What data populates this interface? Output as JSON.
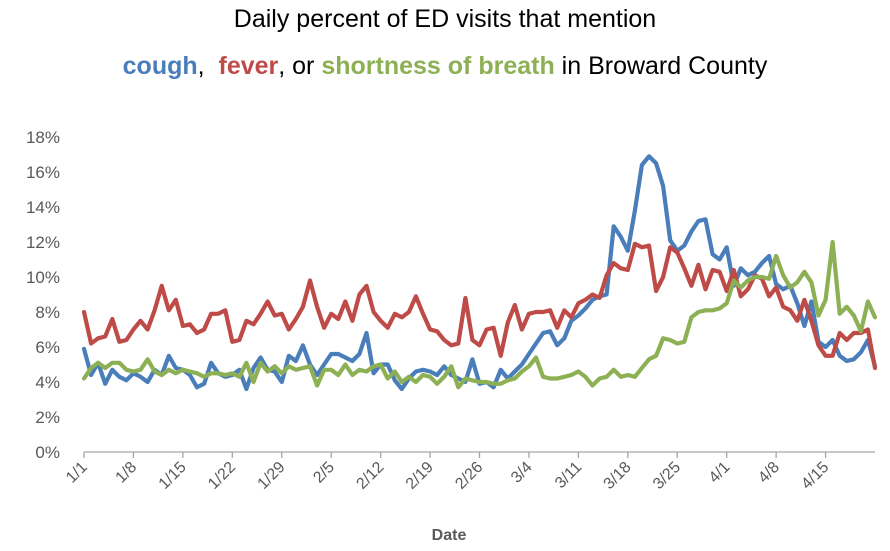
{
  "chart_data": {
    "type": "line",
    "title": {
      "line1": "Daily percent of ED visits that mention",
      "line2": {
        "cough": "cough",
        "sep1": ",  ",
        "fever": "fever",
        "sep2": ", or ",
        "sob": "shortness of breath",
        "suffix": " in Broward County"
      }
    },
    "xlabel": "Date",
    "ylabel": "",
    "ylim": [
      0,
      18
    ],
    "yticks": [
      "0%",
      "2%",
      "4%",
      "6%",
      "8%",
      "10%",
      "12%",
      "14%",
      "16%",
      "18%"
    ],
    "xtick_labels": [
      "1/1",
      "1/8",
      "1/15",
      "1/22",
      "1/29",
      "2/5",
      "2/12",
      "2/19",
      "2/26",
      "3/4",
      "3/11",
      "3/18",
      "3/25",
      "4/1",
      "4/8",
      "4/15"
    ],
    "grid": false,
    "legend": "in title",
    "series": [
      {
        "name": "cough",
        "color": "#4a7ebb",
        "values": [
          5.9,
          4.4,
          5.1,
          3.9,
          4.7,
          4.3,
          4.1,
          4.5,
          4.3,
          4.0,
          4.7,
          4.4,
          5.5,
          4.8,
          4.7,
          4.4,
          3.7,
          3.9,
          5.1,
          4.5,
          4.3,
          4.4,
          4.7,
          3.6,
          4.8,
          5.4,
          4.7,
          4.6,
          4.0,
          5.5,
          5.2,
          6.1,
          5.0,
          4.4,
          5.0,
          5.6,
          5.6,
          5.4,
          5.2,
          5.6,
          6.8,
          4.5,
          5.0,
          5.0,
          4.1,
          3.6,
          4.2,
          4.6,
          4.7,
          4.6,
          4.4,
          4.9,
          4.4,
          4.2,
          4.0,
          5.3,
          3.9,
          4.0,
          3.7,
          4.7,
          4.2,
          4.6,
          5.0,
          5.6,
          6.2,
          6.8,
          6.9,
          6.1,
          6.5,
          7.5,
          7.8,
          8.2,
          8.7,
          8.9,
          9.0,
          12.9,
          12.3,
          11.5,
          13.8,
          16.4,
          16.9,
          16.5,
          15.2,
          12.1,
          11.5,
          11.8,
          12.6,
          13.2,
          13.3,
          11.3,
          11.0,
          11.7,
          9.5,
          10.5,
          10.1,
          10.3,
          10.8,
          11.2,
          9.6,
          9.3,
          9.5,
          8.5,
          7.2,
          8.6,
          6.3,
          6.0,
          6.4,
          5.5,
          5.2,
          5.3,
          5.7,
          6.4,
          4.9
        ]
      },
      {
        "name": "fever",
        "color": "#be4b48",
        "values": [
          8.0,
          6.2,
          6.5,
          6.6,
          7.6,
          6.3,
          6.4,
          7.0,
          7.5,
          7.0,
          8.1,
          9.5,
          8.1,
          8.7,
          7.2,
          7.3,
          6.8,
          7.0,
          7.9,
          7.9,
          8.1,
          6.3,
          6.4,
          7.5,
          7.3,
          7.9,
          8.6,
          7.8,
          7.9,
          7.0,
          7.6,
          8.3,
          9.8,
          8.3,
          7.1,
          7.9,
          7.6,
          8.6,
          7.5,
          9.0,
          9.5,
          8.0,
          7.5,
          7.1,
          7.9,
          7.7,
          8.0,
          8.9,
          7.9,
          7.0,
          6.9,
          6.4,
          6.1,
          6.2,
          8.8,
          6.4,
          6.1,
          7.0,
          7.1,
          5.5,
          7.4,
          8.4,
          7.0,
          7.9,
          8.0,
          8.0,
          8.1,
          7.1,
          8.1,
          7.7,
          8.5,
          8.7,
          9.0,
          8.8,
          10.1,
          10.8,
          10.5,
          10.4,
          11.9,
          11.7,
          11.8,
          9.2,
          10.0,
          11.7,
          11.4,
          10.5,
          9.5,
          10.7,
          9.3,
          10.4,
          10.3,
          9.2,
          10.4,
          8.9,
          9.3,
          10.1,
          9.9,
          8.9,
          9.4,
          8.3,
          8.1,
          7.5,
          8.7,
          7.5,
          6.1,
          5.5,
          5.5,
          6.8,
          6.4,
          6.8,
          6.8,
          7.0,
          4.8
        ]
      },
      {
        "name": "shortness of breath",
        "color": "#8db055",
        "values": [
          4.2,
          4.8,
          5.1,
          4.8,
          5.1,
          5.1,
          4.7,
          4.6,
          4.7,
          5.3,
          4.6,
          4.4,
          4.7,
          4.5,
          4.7,
          4.6,
          4.5,
          4.3,
          4.5,
          4.5,
          4.4,
          4.5,
          4.3,
          5.1,
          4.0,
          5.1,
          4.6,
          4.9,
          4.5,
          4.9,
          4.7,
          4.8,
          4.9,
          3.8,
          4.7,
          4.7,
          4.4,
          5.0,
          4.4,
          4.7,
          4.6,
          4.9,
          5.0,
          4.2,
          4.6,
          4.0,
          4.3,
          4.0,
          4.4,
          4.3,
          3.9,
          4.3,
          4.9,
          3.7,
          4.2,
          4.1,
          4.0,
          4.0,
          3.9,
          3.9,
          4.1,
          4.2,
          4.6,
          4.9,
          5.4,
          4.3,
          4.2,
          4.2,
          4.3,
          4.4,
          4.6,
          4.3,
          3.8,
          4.2,
          4.3,
          4.7,
          4.3,
          4.4,
          4.3,
          4.8,
          5.3,
          5.5,
          6.5,
          6.4,
          6.2,
          6.3,
          7.7,
          8.0,
          8.1,
          8.1,
          8.2,
          8.5,
          9.8,
          9.4,
          9.8,
          10.0,
          10.0,
          9.9,
          11.2,
          10.1,
          9.4,
          9.7,
          10.3,
          9.7,
          7.8,
          8.7,
          12.0,
          7.9,
          8.3,
          7.8,
          6.9,
          8.6,
          7.7
        ]
      }
    ]
  }
}
